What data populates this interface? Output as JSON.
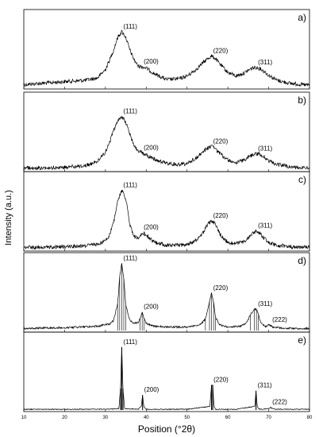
{
  "figure": {
    "y_label": "Intensity (a.u.)",
    "x_label": "Position (°2θ)"
  },
  "chart_data": [
    {
      "panel_label": "a)",
      "type": "line",
      "xlim": [
        10,
        80
      ],
      "x_ticks": [
        10,
        20,
        30,
        40,
        50,
        60,
        70,
        80
      ],
      "series": [
        {
          "x": [
            10,
            15,
            20,
            25,
            28,
            30,
            31,
            32,
            33,
            34,
            35,
            36,
            37,
            38,
            39,
            40,
            42,
            45,
            48,
            50,
            52,
            54,
            55,
            56,
            57,
            58,
            60,
            62,
            64,
            65,
            66,
            67,
            68,
            69,
            70,
            72,
            75,
            78,
            80
          ],
          "y": [
            0.04,
            0.06,
            0.08,
            0.1,
            0.13,
            0.25,
            0.38,
            0.52,
            0.7,
            0.78,
            0.7,
            0.52,
            0.39,
            0.3,
            0.29,
            0.27,
            0.19,
            0.11,
            0.12,
            0.16,
            0.24,
            0.35,
            0.4,
            0.44,
            0.4,
            0.33,
            0.21,
            0.16,
            0.2,
            0.24,
            0.27,
            0.28,
            0.26,
            0.22,
            0.17,
            0.1,
            0.06,
            0.04,
            0.03
          ]
        }
      ],
      "peaks": [
        {
          "label": "(111)",
          "x": 34,
          "y": 0.78
        },
        {
          "label": "(200)",
          "x": 39,
          "y": 0.29
        },
        {
          "label": "(220)",
          "x": 56,
          "y": 0.44
        },
        {
          "label": "(311)",
          "x": 67,
          "y": 0.28
        }
      ]
    },
    {
      "panel_label": "b)",
      "type": "line",
      "xlim": [
        10,
        80
      ],
      "x_ticks": [
        10,
        20,
        30,
        40,
        50,
        60,
        70,
        80
      ],
      "series": [
        {
          "x": [
            10,
            15,
            20,
            25,
            28,
            30,
            31,
            32,
            33,
            34,
            35,
            36,
            37,
            38,
            39,
            40,
            42,
            45,
            48,
            50,
            52,
            54,
            55,
            56,
            57,
            58,
            60,
            62,
            64,
            65,
            66,
            67,
            68,
            69,
            70,
            72,
            75,
            78,
            80
          ],
          "y": [
            0.03,
            0.03,
            0.04,
            0.06,
            0.12,
            0.25,
            0.38,
            0.55,
            0.7,
            0.75,
            0.67,
            0.5,
            0.35,
            0.27,
            0.24,
            0.21,
            0.15,
            0.09,
            0.08,
            0.09,
            0.16,
            0.26,
            0.31,
            0.33,
            0.29,
            0.23,
            0.14,
            0.1,
            0.14,
            0.18,
            0.21,
            0.23,
            0.22,
            0.18,
            0.13,
            0.08,
            0.05,
            0.03,
            0.03
          ]
        }
      ],
      "peaks": [
        {
          "label": "(111)",
          "x": 34,
          "y": 0.75
        },
        {
          "label": "(200)",
          "x": 39,
          "y": 0.24
        },
        {
          "label": "(220)",
          "x": 56,
          "y": 0.33
        },
        {
          "label": "(311)",
          "x": 67,
          "y": 0.23
        }
      ]
    },
    {
      "panel_label": "c)",
      "type": "line",
      "xlim": [
        10,
        80
      ],
      "x_ticks": [
        10,
        20,
        30,
        40,
        50,
        60,
        70,
        80
      ],
      "series": [
        {
          "x": [
            10,
            15,
            20,
            25,
            28,
            30,
            31,
            32,
            33,
            34,
            35,
            36,
            37,
            38,
            39,
            40,
            42,
            45,
            48,
            50,
            52,
            54,
            55,
            56,
            57,
            58,
            60,
            62,
            64,
            65,
            66,
            67,
            68,
            69,
            70,
            72,
            75,
            78,
            80
          ],
          "y": [
            0.03,
            0.03,
            0.04,
            0.05,
            0.07,
            0.13,
            0.2,
            0.38,
            0.68,
            0.83,
            0.7,
            0.35,
            0.18,
            0.16,
            0.24,
            0.2,
            0.1,
            0.06,
            0.06,
            0.07,
            0.12,
            0.24,
            0.35,
            0.4,
            0.35,
            0.22,
            0.1,
            0.08,
            0.11,
            0.16,
            0.22,
            0.26,
            0.22,
            0.15,
            0.1,
            0.06,
            0.04,
            0.03,
            0.03
          ]
        }
      ],
      "peaks": [
        {
          "label": "(111)",
          "x": 34,
          "y": 0.83
        },
        {
          "label": "(200)",
          "x": 39,
          "y": 0.24
        },
        {
          "label": "(220)",
          "x": 56,
          "y": 0.4
        },
        {
          "label": "(311)",
          "x": 67,
          "y": 0.26
        }
      ]
    },
    {
      "panel_label": "d)",
      "type": "line",
      "xlim": [
        10,
        80
      ],
      "x_ticks": [
        10,
        20,
        30,
        40,
        50,
        60,
        70,
        80
      ],
      "series": [
        {
          "x": [
            10,
            20,
            28,
            31,
            32,
            33,
            33.5,
            34,
            34.5,
            35,
            36,
            37,
            38,
            38.5,
            39,
            39.5,
            40,
            42,
            45,
            50,
            53,
            54.5,
            55.5,
            56,
            56.5,
            57,
            58,
            60,
            63,
            64.5,
            65.5,
            66.5,
            67,
            67.5,
            68,
            69,
            69.5,
            70,
            70.5,
            71,
            72,
            75,
            80
          ],
          "y": [
            0.03,
            0.04,
            0.06,
            0.09,
            0.14,
            0.38,
            0.75,
            0.94,
            0.72,
            0.35,
            0.14,
            0.1,
            0.11,
            0.16,
            0.26,
            0.16,
            0.1,
            0.06,
            0.05,
            0.05,
            0.07,
            0.16,
            0.4,
            0.52,
            0.4,
            0.18,
            0.08,
            0.05,
            0.06,
            0.1,
            0.22,
            0.3,
            0.3,
            0.22,
            0.12,
            0.06,
            0.06,
            0.08,
            0.07,
            0.05,
            0.04,
            0.03,
            0.03
          ]
        }
      ],
      "peaks": [
        {
          "label": "(111)",
          "x": 34,
          "y": 0.94
        },
        {
          "label": "(200)",
          "x": 39,
          "y": 0.26
        },
        {
          "label": "(220)",
          "x": 56,
          "y": 0.52
        },
        {
          "label": "(311)",
          "x": 67,
          "y": 0.3
        },
        {
          "label": "(222)",
          "x": 70.5,
          "y": 0.08
        }
      ]
    },
    {
      "panel_label": "e)",
      "type": "line",
      "xlim": [
        10,
        80
      ],
      "x_ticks": [
        10,
        20,
        30,
        40,
        50,
        60,
        70,
        80
      ],
      "series": [
        {
          "x": [
            10,
            20,
            30,
            33.3,
            33.7,
            34,
            34.3,
            34.7,
            38,
            38.8,
            39.1,
            39.4,
            40,
            50,
            55.6,
            56,
            56.3,
            56.6,
            57,
            62,
            66.6,
            66.9,
            67.2,
            67.5,
            68,
            70.2,
            70.5,
            70.8,
            72,
            80
          ],
          "y": [
            0.01,
            0.01,
            0.01,
            0.02,
            0.3,
            0.88,
            0.3,
            0.02,
            0.01,
            0.05,
            0.21,
            0.05,
            0.01,
            0.01,
            0.05,
            0.35,
            0.35,
            0.05,
            0.01,
            0.01,
            0.05,
            0.27,
            0.05,
            0.02,
            0.01,
            0.02,
            0.04,
            0.02,
            0.01,
            0.01
          ]
        }
      ],
      "peaks": [
        {
          "label": "(111)",
          "x": 34,
          "y": 0.88
        },
        {
          "label": "(200)",
          "x": 39.1,
          "y": 0.21
        },
        {
          "label": "(220)",
          "x": 56.1,
          "y": 0.35
        },
        {
          "label": "(311)",
          "x": 66.9,
          "y": 0.27
        },
        {
          "label": "(222)",
          "x": 70.5,
          "y": 0.04
        }
      ]
    }
  ]
}
